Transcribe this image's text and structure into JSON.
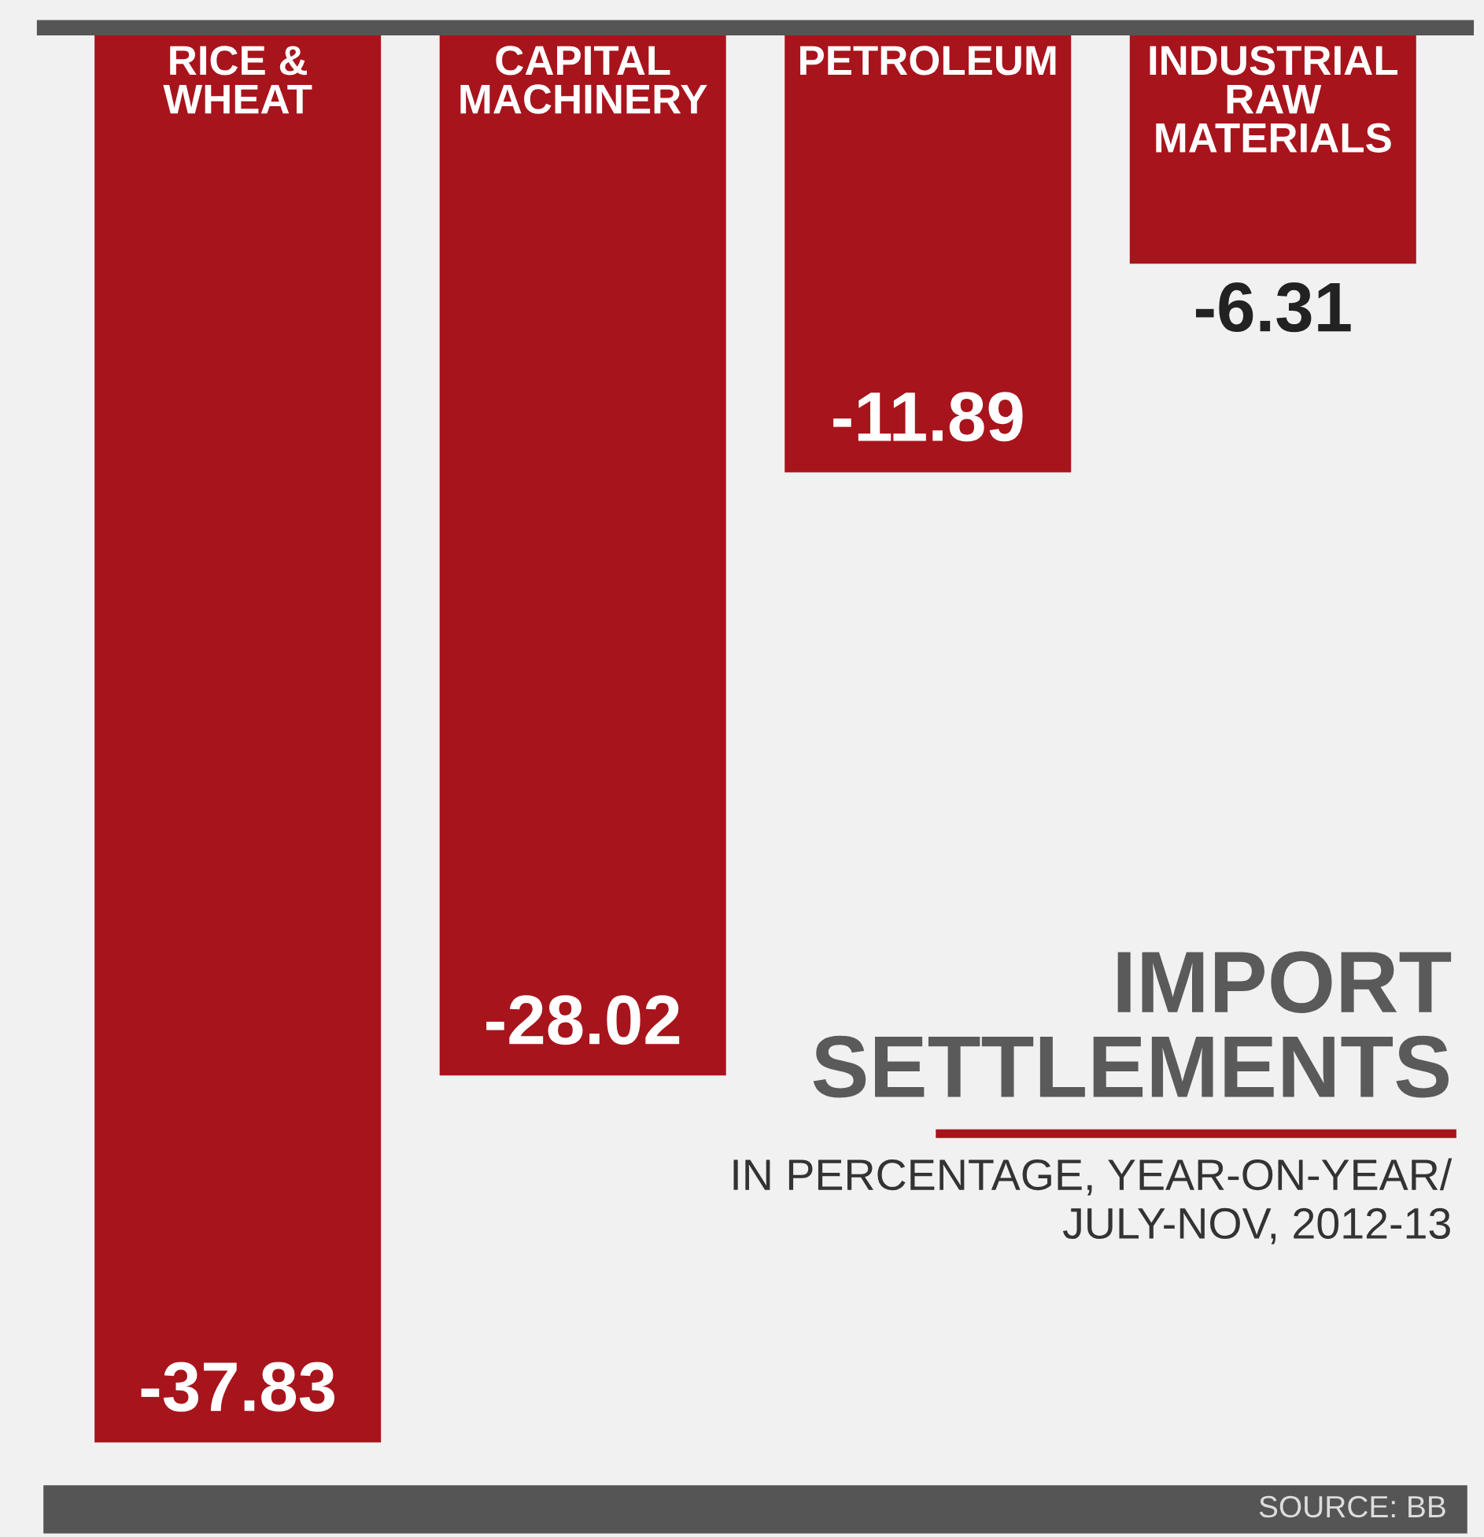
{
  "chart_data": {
    "type": "bar",
    "title": "IMPORT\nSETTLEMENTS",
    "subtitle": "IN PERCENTAGE, YEAR-ON-YEAR/\nJULY-NOV, 2012-13",
    "categories": [
      "RICE &\nWHEAT",
      "CAPITAL\nMACHINERY",
      "PETROLEUM",
      "INDUSTRIAL\nRAW\nMATERIALS"
    ],
    "values": [
      -37.83,
      -28.02,
      -11.89,
      -6.31
    ],
    "color": "#a8141c",
    "data_labels": true,
    "annotations": [
      "SOURCE: BB"
    ]
  }
}
